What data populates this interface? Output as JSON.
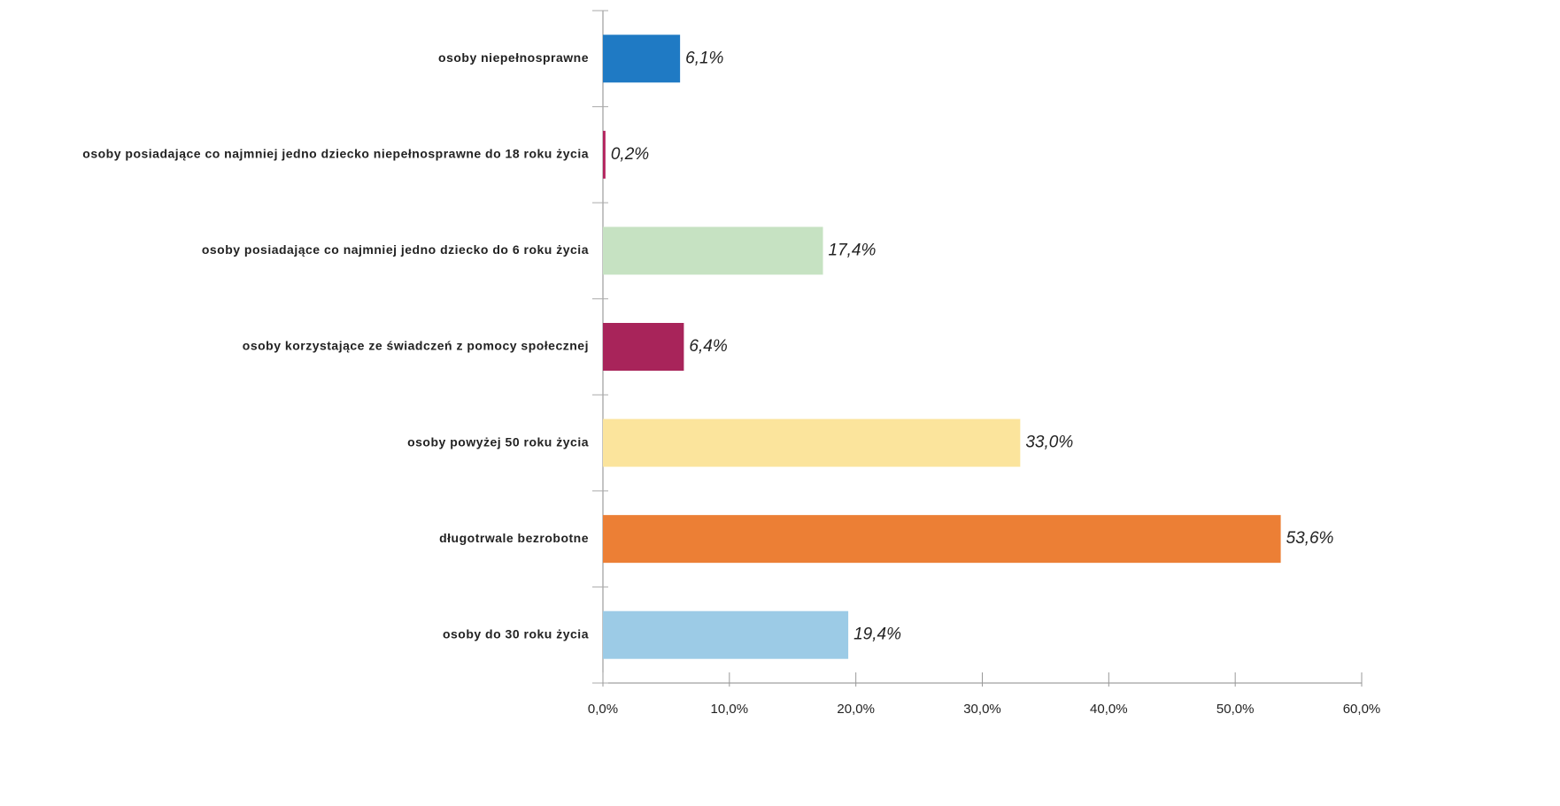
{
  "chart_data": {
    "type": "barh",
    "categories": [
      "osoby niepełnosprawne",
      "osoby posiadające co najmniej jedno dziecko niepełnosprawne do 18 roku życia",
      "osoby posiadające co najmniej jedno dziecko do 6 roku życia",
      "osoby korzystające ze świadczeń z pomocy społecznej",
      "osoby powyżej 50 roku życia",
      "długotrwale bezrobotne",
      "osoby do 30 roku życia"
    ],
    "values": [
      6.1,
      0.2,
      17.4,
      6.4,
      33.0,
      53.6,
      19.4
    ],
    "value_labels": [
      "6,1%",
      "0,2%",
      "17,4%",
      "6,4%",
      "33,0%",
      "53,6%",
      "19,4%"
    ],
    "colors": [
      "#1f7ac4",
      "#b3245e",
      "#c6e2c2",
      "#a8245a",
      "#fbe49c",
      "#ec7f35",
      "#9ccbe6"
    ],
    "xlim": [
      0,
      60
    ],
    "xticks": [
      {
        "value": 0,
        "label": "0,0%"
      },
      {
        "value": 10,
        "label": "10,0%"
      },
      {
        "value": 20,
        "label": "20,0%"
      },
      {
        "value": 30,
        "label": "30,0%"
      },
      {
        "value": 40,
        "label": "40,0%"
      },
      {
        "value": 50,
        "label": "50,0%"
      },
      {
        "value": 60,
        "label": "60,0%"
      }
    ]
  }
}
